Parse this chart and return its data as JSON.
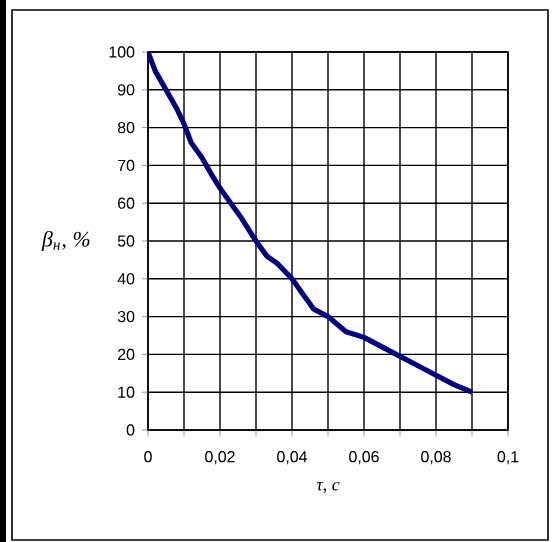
{
  "chart_data": {
    "type": "line",
    "xlabel": "τ, с",
    "ylabel": "β$_{н}$, %",
    "x": [
      0,
      0.002,
      0.005,
      0.008,
      0.01,
      0.012,
      0.015,
      0.018,
      0.02,
      0.023,
      0.026,
      0.03,
      0.033,
      0.036,
      0.04,
      0.043,
      0.046,
      0.05,
      0.055,
      0.06,
      0.065,
      0.07,
      0.075,
      0.08,
      0.085,
      0.09
    ],
    "series": [
      {
        "color": "#000080",
        "values": [
          100,
          95,
          90,
          85,
          81,
          76,
          72,
          67,
          64,
          60,
          56,
          50,
          46,
          44,
          40,
          36,
          32,
          30,
          26,
          24.5,
          22,
          19.5,
          17,
          14.5,
          12,
          10
        ]
      }
    ],
    "xlim": [
      0,
      0.1
    ],
    "ylim": [
      0,
      100
    ],
    "xticks": [
      0,
      {
        "value": 0.01,
        "label": null
      },
      {
        "value": 0.02,
        "label": "0,02"
      },
      {
        "value": 0.03,
        "label": null
      },
      {
        "value": 0.04,
        "label": "0,04"
      },
      {
        "value": 0.05,
        "label": null
      },
      {
        "value": 0.06,
        "label": "0,06"
      },
      {
        "value": 0.07,
        "label": null
      },
      {
        "value": 0.08,
        "label": "0,08"
      },
      {
        "value": 0.09,
        "label": null
      },
      {
        "value": 0.1,
        "label": "0,1"
      }
    ],
    "yticks": [
      0,
      10,
      20,
      30,
      40,
      50,
      60,
      70,
      80,
      90,
      100
    ],
    "grid": true,
    "marker": "none",
    "line_style": "solid"
  }
}
